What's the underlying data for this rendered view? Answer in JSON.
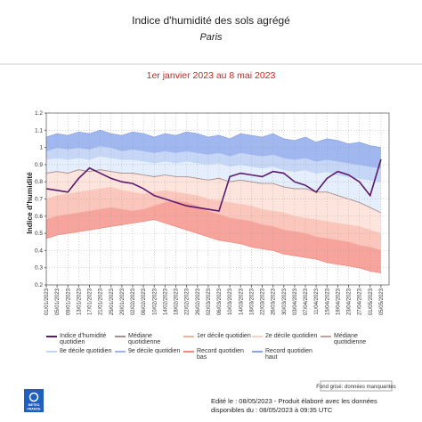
{
  "chart_data": {
    "type": "line",
    "title": "Indice d'humidité des sols agrégé",
    "subtitle": "Paris",
    "period": "1er janvier 2023 au 8 mai 2023",
    "y_label": "Indice d'humidité",
    "categories": [
      "01/01/2023",
      "05/01/2023",
      "09/01/2023",
      "13/01/2023",
      "17/01/2023",
      "21/01/2023",
      "25/01/2023",
      "29/01/2023",
      "02/02/2023",
      "06/02/2023",
      "10/02/2023",
      "14/02/2023",
      "18/02/2023",
      "22/02/2023",
      "26/02/2023",
      "02/03/2023",
      "06/03/2023",
      "10/03/2023",
      "14/03/2023",
      "18/03/2023",
      "22/03/2023",
      "26/03/2023",
      "30/03/2023",
      "03/04/2023",
      "07/04/2023",
      "11/04/2023",
      "15/04/2023",
      "19/04/2023",
      "23/04/2023",
      "27/04/2023",
      "01/05/2023",
      "05/05/2023"
    ],
    "series": [
      {
        "name": "Indice d'humidité quotidien",
        "color": "#5b1a6e",
        "values": [
          0.76,
          0.75,
          0.74,
          0.82,
          0.88,
          0.85,
          0.82,
          0.8,
          0.79,
          0.76,
          0.72,
          0.7,
          0.68,
          0.66,
          0.65,
          0.64,
          0.63,
          0.83,
          0.85,
          0.84,
          0.83,
          0.86,
          0.85,
          0.8,
          0.78,
          0.74,
          0.82,
          0.86,
          0.84,
          0.8,
          0.72,
          0.93
        ]
      },
      {
        "name": "Médiane quotidienne",
        "color": "#a89090",
        "values": [
          0.85,
          0.86,
          0.85,
          0.87,
          0.86,
          0.87,
          0.86,
          0.85,
          0.85,
          0.84,
          0.83,
          0.84,
          0.83,
          0.83,
          0.82,
          0.81,
          0.82,
          0.8,
          0.81,
          0.8,
          0.79,
          0.79,
          0.77,
          0.76,
          0.76,
          0.74,
          0.74,
          0.72,
          0.7,
          0.68,
          0.65,
          0.62
        ]
      },
      {
        "name": "1er décile quotidien",
        "color": "#f4b0a4",
        "values": [
          0.58,
          0.6,
          0.61,
          0.62,
          0.63,
          0.64,
          0.65,
          0.64,
          0.63,
          0.64,
          0.66,
          0.68,
          0.69,
          0.68,
          0.66,
          0.63,
          0.61,
          0.59,
          0.58,
          0.57,
          0.55,
          0.54,
          0.52,
          0.51,
          0.5,
          0.48,
          0.47,
          0.46,
          0.45,
          0.43,
          0.42,
          0.4
        ]
      },
      {
        "name": "2e décile quotidien",
        "color": "#f8d0c4",
        "values": [
          0.7,
          0.72,
          0.73,
          0.74,
          0.75,
          0.76,
          0.77,
          0.75,
          0.74,
          0.73,
          0.74,
          0.75,
          0.74,
          0.73,
          0.72,
          0.7,
          0.69,
          0.68,
          0.67,
          0.66,
          0.64,
          0.63,
          0.62,
          0.6,
          0.59,
          0.58,
          0.57,
          0.56,
          0.55,
          0.54,
          0.52,
          0.5
        ]
      },
      {
        "name": "Médiane quotidienne",
        "color": "#c8a0a0",
        "values": [
          0.85,
          0.86,
          0.85,
          0.87,
          0.86,
          0.87,
          0.86,
          0.85,
          0.85,
          0.84,
          0.83,
          0.84,
          0.83,
          0.83,
          0.82,
          0.81,
          0.82,
          0.8,
          0.81,
          0.8,
          0.79,
          0.79,
          0.77,
          0.76,
          0.76,
          0.74,
          0.74,
          0.72,
          0.7,
          0.68,
          0.65,
          0.62
        ]
      },
      {
        "name": "8e décile quotidien",
        "color": "#c4d6f6",
        "values": [
          0.93,
          0.94,
          0.93,
          0.94,
          0.93,
          0.95,
          0.94,
          0.93,
          0.93,
          0.92,
          0.91,
          0.92,
          0.91,
          0.92,
          0.91,
          0.9,
          0.91,
          0.89,
          0.9,
          0.89,
          0.88,
          0.89,
          0.87,
          0.86,
          0.87,
          0.85,
          0.86,
          0.84,
          0.83,
          0.82,
          0.81,
          0.8
        ]
      },
      {
        "name": "9e décile quotidien",
        "color": "#9fb6ef",
        "values": [
          0.98,
          1.0,
          0.99,
          1.0,
          0.99,
          1.01,
          1.0,
          0.98,
          0.99,
          0.98,
          0.97,
          0.98,
          0.97,
          0.98,
          0.97,
          0.96,
          0.97,
          0.95,
          0.97,
          0.96,
          0.95,
          0.96,
          0.94,
          0.93,
          0.94,
          0.92,
          0.93,
          0.92,
          0.91,
          0.9,
          0.89,
          0.88
        ]
      },
      {
        "name": "Record quotidien bas",
        "color": "#f08a80",
        "values": [
          0.47,
          0.49,
          0.5,
          0.51,
          0.52,
          0.53,
          0.54,
          0.55,
          0.56,
          0.57,
          0.58,
          0.56,
          0.54,
          0.52,
          0.5,
          0.48,
          0.46,
          0.45,
          0.44,
          0.42,
          0.41,
          0.4,
          0.38,
          0.37,
          0.36,
          0.35,
          0.33,
          0.32,
          0.31,
          0.3,
          0.28,
          0.27
        ]
      },
      {
        "name": "Record quotidien haut",
        "color": "#8aa4e8",
        "values": [
          1.06,
          1.08,
          1.07,
          1.09,
          1.08,
          1.1,
          1.08,
          1.07,
          1.09,
          1.08,
          1.06,
          1.08,
          1.07,
          1.09,
          1.08,
          1.06,
          1.07,
          1.05,
          1.08,
          1.07,
          1.06,
          1.08,
          1.05,
          1.04,
          1.06,
          1.03,
          1.05,
          1.04,
          1.02,
          1.03,
          1.01,
          1.0
        ]
      }
    ],
    "ylim": [
      0.2,
      1.2
    ],
    "yticks": [
      0.2,
      0.3,
      0.4,
      0.5,
      0.6,
      0.7,
      0.8,
      0.9,
      1,
      1.1,
      1.2
    ],
    "grid": true
  },
  "missing_data_note": "Fond grisé: données manquantes",
  "footer": [
    "Edité le : 08/05/2023 - Produit élaboré avec les données",
    "disponibles du : 08/05/2023 à 09:35 UTC"
  ],
  "logo": [
    "METEO",
    "FRANCE"
  ]
}
